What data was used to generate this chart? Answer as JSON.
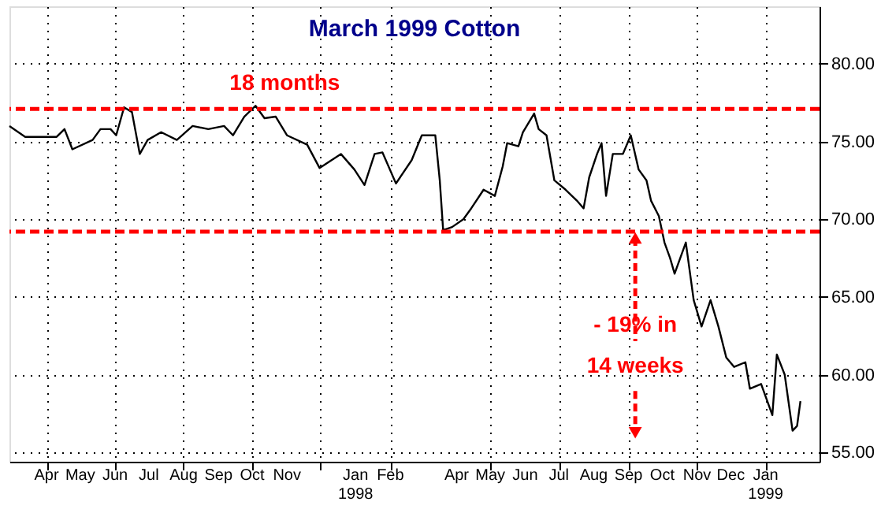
{
  "chart_data": {
    "type": "line",
    "title": "March 1999 Cotton",
    "x": [
      "1997-03-14",
      "1997-03-28",
      "1997-04-25",
      "1997-05-02",
      "1997-05-09",
      "1997-05-27",
      "1997-06-03",
      "1997-06-12",
      "1997-06-17",
      "1997-06-24",
      "1997-07-01",
      "1997-07-08",
      "1997-07-15",
      "1997-07-27",
      "1997-08-10",
      "1997-08-24",
      "1997-09-07",
      "1997-09-21",
      "1997-09-29",
      "1997-10-09",
      "1997-10-19",
      "1997-10-27",
      "1997-11-06",
      "1997-11-16",
      "1997-12-04",
      "1997-12-15",
      "1998-01-03",
      "1998-01-15",
      "1998-01-24",
      "1998-02-02",
      "1998-02-09",
      "1998-02-21",
      "1998-03-07",
      "1998-03-16",
      "1998-03-28",
      "1998-04-01",
      "1998-04-04",
      "1998-04-12",
      "1998-04-22",
      "1998-04-29",
      "1998-05-10",
      "1998-05-20",
      "1998-05-27",
      "1998-05-31",
      "1998-06-10",
      "1998-06-14",
      "1998-06-24",
      "1998-06-28",
      "1998-07-05",
      "1998-07-12",
      "1998-07-22",
      "1998-08-01",
      "1998-08-07",
      "1998-08-12",
      "1998-08-19",
      "1998-08-23",
      "1998-08-27",
      "1998-09-02",
      "1998-09-11",
      "1998-09-18",
      "1998-09-25",
      "1998-10-02",
      "1998-10-06",
      "1998-10-13",
      "1998-10-18",
      "1998-10-23",
      "1998-10-27",
      "1998-11-06",
      "1998-11-13",
      "1998-11-20",
      "1998-11-28",
      "1998-12-05",
      "1998-12-12",
      "1998-12-19",
      "1998-12-29",
      "1999-01-02",
      "1999-01-12",
      "1999-01-22",
      "1999-01-26",
      "1999-02-02",
      "1999-02-09",
      "1999-02-13",
      "1999-02-16"
    ],
    "series": [
      {
        "color": "#000000",
        "values": [
          76.0,
          75.3,
          75.3,
          75.8,
          74.5,
          75.1,
          75.8,
          75.8,
          75.4,
          77.2,
          76.9,
          74.2,
          75.1,
          75.6,
          75.1,
          76.0,
          75.8,
          76.0,
          75.4,
          76.6,
          77.3,
          76.5,
          76.6,
          75.4,
          74.8,
          73.3,
          74.2,
          73.2,
          72.2,
          74.2,
          74.3,
          72.3,
          73.8,
          75.4,
          75.4,
          72.5,
          69.3,
          69.5,
          70.0,
          70.7,
          71.9,
          71.5,
          73.4,
          74.9,
          74.7,
          75.6,
          76.8,
          75.8,
          75.4,
          72.5,
          71.9,
          71.2,
          70.7,
          72.7,
          74.2,
          74.9,
          71.5,
          74.2,
          74.2,
          75.4,
          73.2,
          72.5,
          71.2,
          70.2,
          68.5,
          67.5,
          66.5,
          68.5,
          64.8,
          63.1,
          64.8,
          63.1,
          61.1,
          60.5,
          60.8,
          59.1,
          59.4,
          57.4,
          61.3,
          60.0,
          56.4,
          56.7,
          58.3
        ]
      }
    ],
    "xlim": [
      "1997-03-14",
      "1999-03-05"
    ],
    "xticks": [
      {
        "value": "1997-04-16",
        "label": "Apr"
      },
      {
        "value": "1997-05-16",
        "label": "May"
      },
      {
        "value": "1997-06-16",
        "label": "Jun"
      },
      {
        "value": "1997-07-16",
        "label": "Jul"
      },
      {
        "value": "1997-08-16",
        "label": "Aug"
      },
      {
        "value": "1997-09-16",
        "label": "Sep"
      },
      {
        "value": "1997-10-16",
        "label": "Oct"
      },
      {
        "value": "1997-11-16",
        "label": "Nov"
      },
      {
        "value": "1997-12-16",
        "label": null
      },
      {
        "value": "1998-01-16",
        "label": "Jan\n1998"
      },
      {
        "value": "1998-02-16",
        "label": "Feb"
      },
      {
        "value": "1998-04-16",
        "label": "Apr"
      },
      {
        "value": "1998-05-16",
        "label": "May"
      },
      {
        "value": "1998-06-16",
        "label": "Jun"
      },
      {
        "value": "1998-07-16",
        "label": "Jul"
      },
      {
        "value": "1998-08-16",
        "label": "Aug"
      },
      {
        "value": "1998-09-16",
        "label": "Sep"
      },
      {
        "value": "1998-10-16",
        "label": "Oct"
      },
      {
        "value": "1998-11-16",
        "label": "Nov"
      },
      {
        "value": "1998-12-16",
        "label": "Dec"
      },
      {
        "value": "1999-01-16",
        "label": "Jan\n1999"
      }
    ],
    "ylim": [
      54.4,
      83.7
    ],
    "yticks": [
      {
        "value": 55,
        "label": "55.00"
      },
      {
        "value": 60,
        "label": "60.00"
      },
      {
        "value": 65,
        "label": "65.00"
      },
      {
        "value": 70,
        "label": "70.00"
      },
      {
        "value": 75,
        "label": "75.00"
      },
      {
        "value": 80,
        "label": "80.00"
      }
    ],
    "grid": true,
    "line_style": "solid",
    "ref_lines": [
      {
        "axis": "y",
        "value": 77.1,
        "color": "#ff0000",
        "line_style": "dashed"
      },
      {
        "axis": "y",
        "value": 69.2,
        "color": "#ff0000",
        "line_style": "dashed"
      }
    ],
    "annotations": [
      "18 months",
      {
        "text": "- 19% in",
        "x": "1998-09-22",
        "y": 69.2
      },
      "14 weeks"
    ]
  }
}
